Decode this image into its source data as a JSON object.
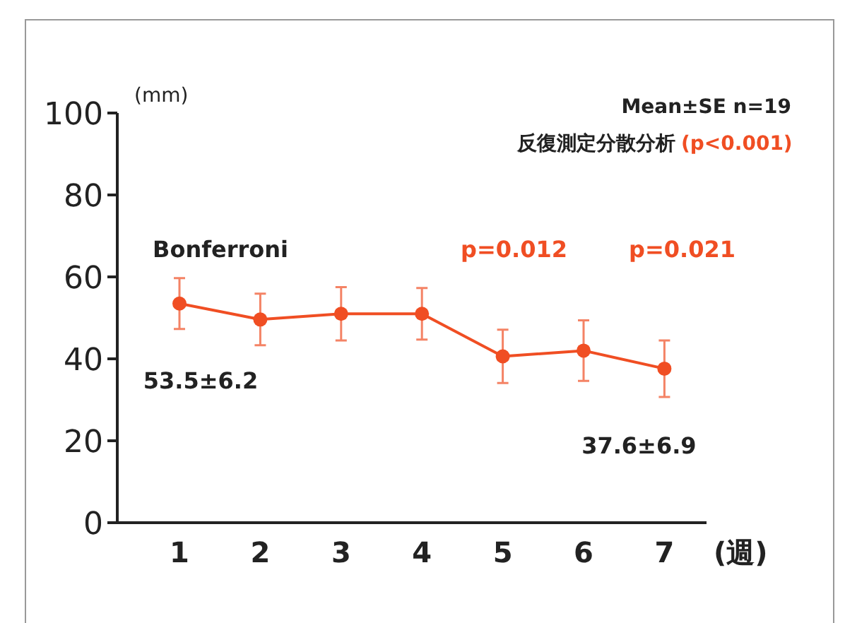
{
  "chart_data": {
    "type": "line",
    "ylabel": "(mm)",
    "xlabel": "(週)",
    "categories": [
      "1",
      "2",
      "3",
      "4",
      "5",
      "6",
      "7"
    ],
    "series": [
      {
        "color": "#f04e23",
        "values": [
          53.5,
          49.6,
          51.0,
          51.0,
          40.6,
          42.0,
          37.6
        ],
        "errors": [
          6.2,
          6.3,
          6.5,
          6.3,
          6.5,
          7.4,
          6.9
        ]
      }
    ],
    "ylim": [
      0,
      100
    ],
    "yticks": [
      0,
      20,
      40,
      60,
      80,
      100
    ],
    "marker": "circle",
    "line_style": "solid",
    "grid": false,
    "annotations": [
      "Mean±SE n=19",
      "反復測定分散分析",
      "(p<0.001)",
      "Bonferroni",
      "p=0.012",
      "p=0.021",
      {
        "text": "53.5±6.2",
        "x": "1",
        "y": 53.5
      },
      {
        "text": "37.6±6.9",
        "x": "7",
        "y": 37.6
      }
    ]
  }
}
